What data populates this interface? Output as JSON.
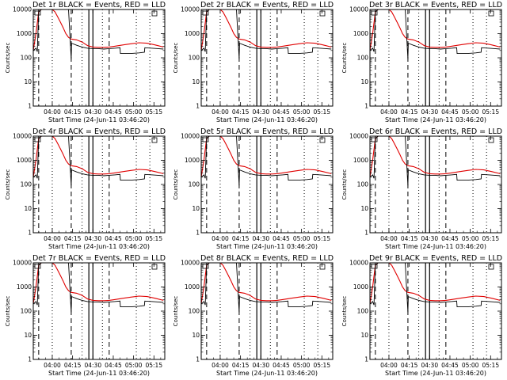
{
  "figure": {
    "panels": [
      {
        "title": "Det 1r BLACK = Events, RED = LLD"
      },
      {
        "title": "Det 2r BLACK = Events, RED = LLD"
      },
      {
        "title": "Det 3r BLACK = Events, RED = LLD"
      },
      {
        "title": "Det 4r BLACK = Events, RED = LLD"
      },
      {
        "title": "Det 5r BLACK = Events, RED = LLD"
      },
      {
        "title": "Det 6r BLACK = Events, RED = LLD"
      },
      {
        "title": "Det 7r BLACK = Events, RED = LLD"
      },
      {
        "title": "Det 8r BLACK = Events, RED = LLD"
      },
      {
        "title": "Det 9r BLACK = Events, RED = LLD"
      }
    ]
  },
  "colors": {
    "events": "#000000",
    "lld": "#e00000",
    "axes": "#000000",
    "background": "#ffffff"
  },
  "chart_data": {
    "type": "line",
    "layout": "3x3 grid of identical-axis panels",
    "xlabel": "Start Time (24-Jun-11 03:46:20)",
    "ylabel": "Counts/sec",
    "xticklabels": [
      "04:00",
      "04:15",
      "04:30",
      "04:45",
      "05:00",
      "05:15"
    ],
    "yticklabels": [
      "1",
      "10",
      "100",
      "1000",
      "10000"
    ],
    "yscale": "log",
    "ylim": [
      1,
      10000
    ],
    "xlim_minutes_after_start": [
      0,
      97
    ],
    "grid": false,
    "vertical_markers": {
      "dashed_minutes": [
        4,
        28,
        56
      ],
      "dotted_minutes": [
        14,
        36,
        51,
        76,
        86
      ],
      "solid_minutes": [
        41,
        44
      ]
    },
    "series": [
      {
        "name": "LLD",
        "color": "#e00000",
        "x": [
          0,
          2,
          4,
          6,
          8,
          10,
          12,
          14,
          16,
          18,
          20,
          22,
          24,
          26,
          28,
          32,
          36,
          40,
          44,
          48,
          52,
          56,
          60,
          66,
          72,
          78,
          84,
          90,
          96
        ],
        "y": [
          200,
          1000,
          8000,
          10000,
          10000,
          10000,
          10000,
          10000,
          8000,
          5000,
          3000,
          1800,
          1000,
          700,
          600,
          550,
          450,
          320,
          280,
          270,
          270,
          280,
          300,
          340,
          380,
          420,
          400,
          340,
          280
        ]
      },
      {
        "name": "Events",
        "color": "#000000",
        "x": [
          0,
          2,
          3,
          4,
          6,
          8,
          10,
          12,
          14,
          16,
          26,
          28,
          28.3,
          32,
          36,
          40,
          44,
          48,
          52,
          56,
          60,
          64,
          64.3,
          72,
          78,
          82,
          82.3,
          88,
          92,
          96
        ],
        "y": [
          200,
          250,
          180,
          8000,
          10000,
          10000,
          10000,
          10000,
          10000,
          10000,
          10000,
          90,
          400,
          330,
          280,
          250,
          240,
          240,
          230,
          240,
          250,
          260,
          150,
          150,
          160,
          170,
          260,
          250,
          240,
          230
        ]
      }
    ]
  }
}
